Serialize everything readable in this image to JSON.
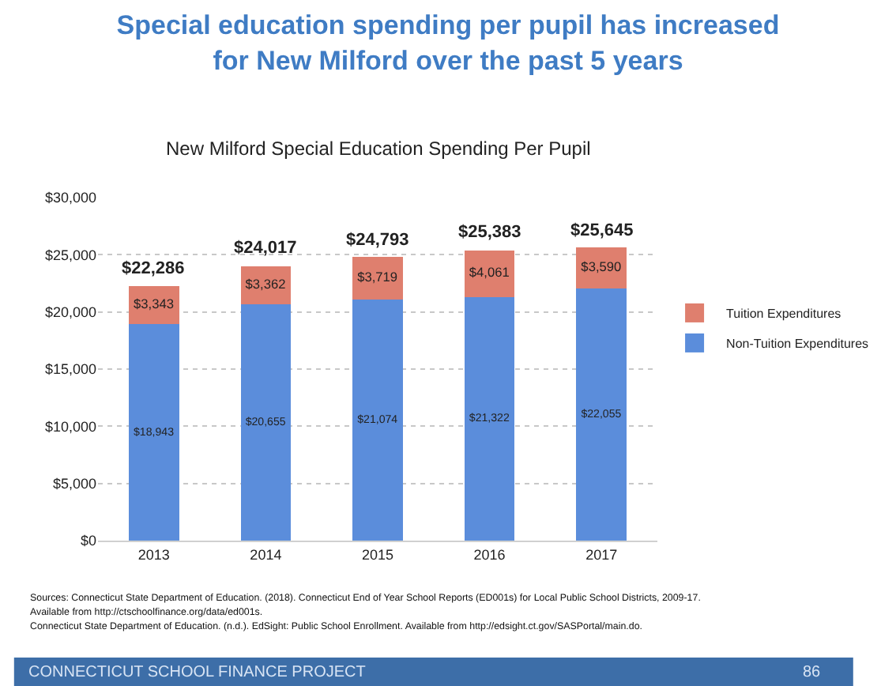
{
  "chart_data": {
    "type": "bar",
    "stacked": true,
    "title": "Special education spending per pupil has increased\nfor New Milford over the past 5 years",
    "subtitle": "New Milford Special Education Spending Per Pupil",
    "categories": [
      "2013",
      "2014",
      "2015",
      "2016",
      "2017"
    ],
    "series": [
      {
        "name": "Non-Tuition Expenditures",
        "color": "#5b8ddb",
        "values": [
          18943,
          20655,
          21074,
          21322,
          22055
        ],
        "value_labels": [
          "$18,943",
          "$20,655",
          "$21,074",
          "$21,322",
          "$22,055"
        ]
      },
      {
        "name": "Tuition Expenditures",
        "color": "#df7f6e",
        "values": [
          3343,
          3362,
          3719,
          4061,
          3590
        ],
        "value_labels": [
          "$3,343",
          "$3,362",
          "$3,719",
          "$4,061",
          "$3,590"
        ]
      }
    ],
    "totals": [
      "$22,286",
      "$24,017",
      "$24,793",
      "$25,383",
      "$25,645"
    ],
    "ylim": [
      0,
      30000
    ],
    "yticks": [
      {
        "value": 0,
        "label": "$0"
      },
      {
        "value": 5000,
        "label": "$5,000"
      },
      {
        "value": 10000,
        "label": "$10,000"
      },
      {
        "value": 15000,
        "label": "$15,000"
      },
      {
        "value": 20000,
        "label": "$20,000"
      },
      {
        "value": 25000,
        "label": "$25,000"
      },
      {
        "value": 30000,
        "label": "$30,000"
      }
    ],
    "grid": "y",
    "legend": "right",
    "annotations": [
      "Sources: Connecticut State Department of Education. (2018). Connecticut End of Year School Reports (ED001s) for Local Public School Districts, 2009-17.",
      "Available from http://ctschoolfinance.org/data/ed001s.",
      "Connecticut State Department of Education. (n.d.). EdSight: Public School Enrollment. Available from http://edsight.ct.gov/SASPortal/main.do.",
      "CONNECTICUT SCHOOL FINANCE PROJECT",
      "86"
    ]
  }
}
